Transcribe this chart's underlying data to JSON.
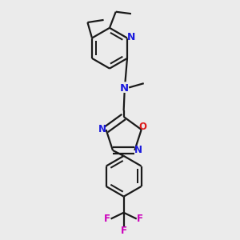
{
  "background_color": "#ebebeb",
  "bond_color": "#1a1a1a",
  "nitrogen_color": "#1a1add",
  "oxygen_color": "#dd1a1a",
  "fluorine_color": "#cc00bb",
  "bond_width": 1.6,
  "dbo": 0.018,
  "figsize": [
    3.0,
    3.0
  ],
  "dpi": 100,
  "xlim": [
    0.25,
    0.85
  ],
  "ylim": [
    0.02,
    0.98
  ]
}
